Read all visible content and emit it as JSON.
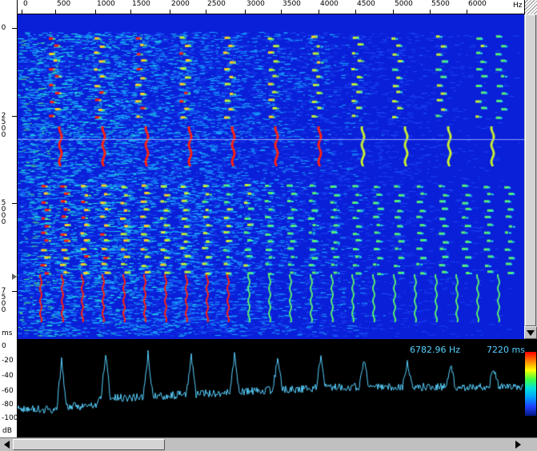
{
  "ruler": {
    "freq_ticks": [
      "0",
      "500",
      "1000",
      "1500",
      "2000",
      "2500",
      "3000",
      "3500",
      "4000",
      "4500",
      "5000",
      "5500",
      "6000"
    ],
    "freq_unit": "Hz",
    "time_ticks": [
      "0",
      "2500",
      "5000",
      "7500"
    ],
    "time_unit": "ms"
  },
  "profile": {
    "db_ticks": [
      "0",
      "-20",
      "-40",
      "-60",
      "-80",
      "-100"
    ],
    "db_unit": "dB"
  },
  "readout": {
    "frequency": "6782.96 Hz",
    "time": "7220 ms"
  },
  "colors": {
    "background": "#0a1fd8",
    "trace": "#58d0ff",
    "cursor": "#8aa0ff"
  },
  "icons": {
    "scroll_left": "arrow-left-icon",
    "scroll_right": "arrow-right-icon",
    "scroll_down": "arrow-down-icon"
  }
}
